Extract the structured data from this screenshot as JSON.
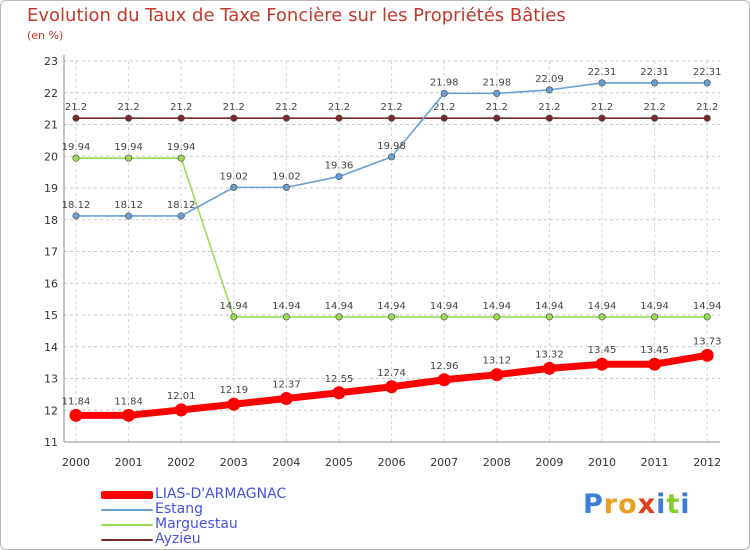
{
  "header": {
    "title": "Evolution du Taux de Taxe Foncière sur les Propriétés Bâties",
    "unit": "(en %)"
  },
  "chart_data": {
    "type": "line",
    "title": "Evolution du Taux de Taxe Foncière sur les Propriétés Bâties",
    "ylabel": "(en %)",
    "xlabel": "",
    "categories": [
      "2000",
      "2001",
      "2002",
      "2003",
      "2004",
      "2005",
      "2006",
      "2007",
      "2008",
      "2009",
      "2010",
      "2011",
      "2012"
    ],
    "ylim": [
      11,
      23
    ],
    "yticks": [
      11,
      12,
      13,
      14,
      15,
      16,
      17,
      18,
      19,
      20,
      21,
      22,
      23
    ],
    "grid": "horizontal and vertical dashed",
    "legend_position": "bottom-left",
    "series": [
      {
        "name": "LIAS-D'ARMAGNAC",
        "color": "#ff0000",
        "values": [
          11.84,
          11.84,
          12.01,
          12.19,
          12.37,
          12.55,
          12.74,
          12.96,
          13.12,
          13.32,
          13.45,
          13.45,
          13.73
        ],
        "labels": [
          "11.84",
          "11.84",
          "12.01",
          "12.19",
          "12.37",
          "12.55",
          "12.74",
          "12.96",
          "13.12",
          "13.32",
          "13.45",
          "13.45",
          "13.73"
        ]
      },
      {
        "name": "Estang",
        "color": "#6a9fd4",
        "values": [
          18.12,
          18.12,
          18.12,
          19.02,
          19.02,
          19.36,
          19.98,
          21.98,
          21.98,
          22.09,
          22.31,
          22.31,
          22.31
        ],
        "labels": [
          "18.12",
          "18.12",
          "18.12",
          "19.02",
          "19.02",
          "19.36",
          "19.98",
          "21.98",
          "21.98",
          "22.09",
          "22.31",
          "22.31",
          "22.31"
        ]
      },
      {
        "name": "Marguestau",
        "color": "#99dd55",
        "values": [
          19.94,
          19.94,
          19.94,
          14.94,
          14.94,
          14.94,
          14.94,
          14.94,
          14.94,
          14.94,
          14.94,
          14.94,
          14.94
        ],
        "labels": [
          "19.94",
          "19.94",
          "19.94",
          "14.94",
          "14.94",
          "14.94",
          "14.94",
          "14.94",
          "14.94",
          "14.94",
          "14.94",
          "14.94",
          "14.94"
        ]
      },
      {
        "name": "Ayzieu",
        "color": "#7a2a2a",
        "values": [
          21.2,
          21.2,
          21.2,
          21.2,
          21.2,
          21.2,
          21.2,
          21.2,
          21.2,
          21.2,
          21.2,
          21.2,
          21.2
        ],
        "labels": [
          "21.2",
          "21.2",
          "21.2",
          "21.2",
          "21.2",
          "21.2",
          "21.2",
          "21.2",
          "21.2",
          "21.2",
          "21.2",
          "21.2",
          "21.2"
        ]
      }
    ]
  },
  "legend": {
    "items": [
      {
        "label": "LIAS-D'ARMAGNAC",
        "color": "#ff0000"
      },
      {
        "label": "Estang",
        "color": "#6a9fd4"
      },
      {
        "label": "Marguestau",
        "color": "#99dd55"
      },
      {
        "label": "Ayzieu",
        "color": "#7a2a2a"
      }
    ]
  },
  "logo": {
    "letters": [
      "P",
      "r",
      "o",
      "x",
      "i",
      "t",
      "i"
    ],
    "colors": [
      "#3a7fd5",
      "#e8a020",
      "#e8a020",
      "#e04020",
      "#3a7fd5",
      "#88cc33",
      "#3a7fd5"
    ]
  }
}
